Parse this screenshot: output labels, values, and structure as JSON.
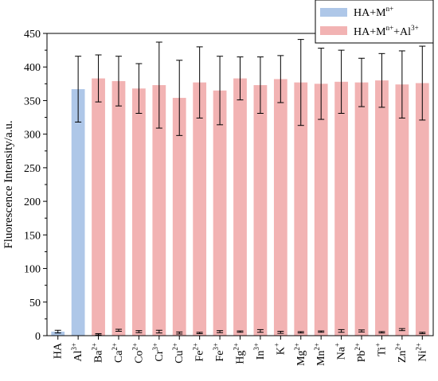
{
  "chart_data": {
    "type": "bar",
    "xlabel": "",
    "ylabel": "Fluorescence Intensity/a.u.",
    "ylim": [
      0,
      450
    ],
    "yticks": [
      0,
      50,
      100,
      150,
      200,
      250,
      300,
      350,
      400,
      450
    ],
    "grid": false,
    "legend_position": "top-right",
    "categories": [
      {
        "base": "HA",
        "sup": ""
      },
      {
        "base": "Al",
        "sup": "3+"
      },
      {
        "base": "Ba",
        "sup": "2+"
      },
      {
        "base": "Ca",
        "sup": "2+"
      },
      {
        "base": "Co",
        "sup": "2+"
      },
      {
        "base": "Cr",
        "sup": "3+"
      },
      {
        "base": "Cu",
        "sup": "2+"
      },
      {
        "base": "Fe",
        "sup": "2+"
      },
      {
        "base": "Fe",
        "sup": "3+"
      },
      {
        "base": "Hg",
        "sup": "2+"
      },
      {
        "base": "In",
        "sup": "3+"
      },
      {
        "base": "K",
        "sup": "+"
      },
      {
        "base": "Mg",
        "sup": "2+"
      },
      {
        "base": "Mn",
        "sup": "2+"
      },
      {
        "base": "Na",
        "sup": "+"
      },
      {
        "base": "Pb",
        "sup": "2+"
      },
      {
        "base": "Ti",
        "sup": "+"
      },
      {
        "base": "Zn",
        "sup": "2+"
      },
      {
        "base": "Ni",
        "sup": "2+"
      }
    ],
    "series": [
      {
        "name": "HA+M",
        "name_sup": "n+",
        "color": "#aec7e8",
        "values": [
          6,
          367,
          2,
          8,
          6,
          6,
          4,
          4,
          6,
          6,
          7,
          5,
          5,
          6,
          7,
          7,
          5,
          9,
          4
        ],
        "errors": [
          2,
          49,
          1,
          1.5,
          1.5,
          2,
          1.5,
          1,
          1.5,
          1,
          2,
          1.5,
          1,
          1,
          2,
          1.5,
          1,
          1.5,
          1
        ]
      },
      {
        "name": "HA+M",
        "name_sup": "n+",
        "name_suffix": "+Al",
        "name_suffix_sup": "3+",
        "color": "#f2b3b3",
        "values": [
          null,
          null,
          383,
          379,
          368,
          373,
          354,
          377,
          365,
          383,
          373,
          382,
          377,
          375,
          378,
          377,
          380,
          374,
          376
        ],
        "errors": [
          null,
          null,
          35,
          37,
          37,
          64,
          56,
          53,
          51,
          32,
          42,
          35,
          64,
          53,
          47,
          36,
          40,
          50,
          55
        ]
      }
    ]
  }
}
